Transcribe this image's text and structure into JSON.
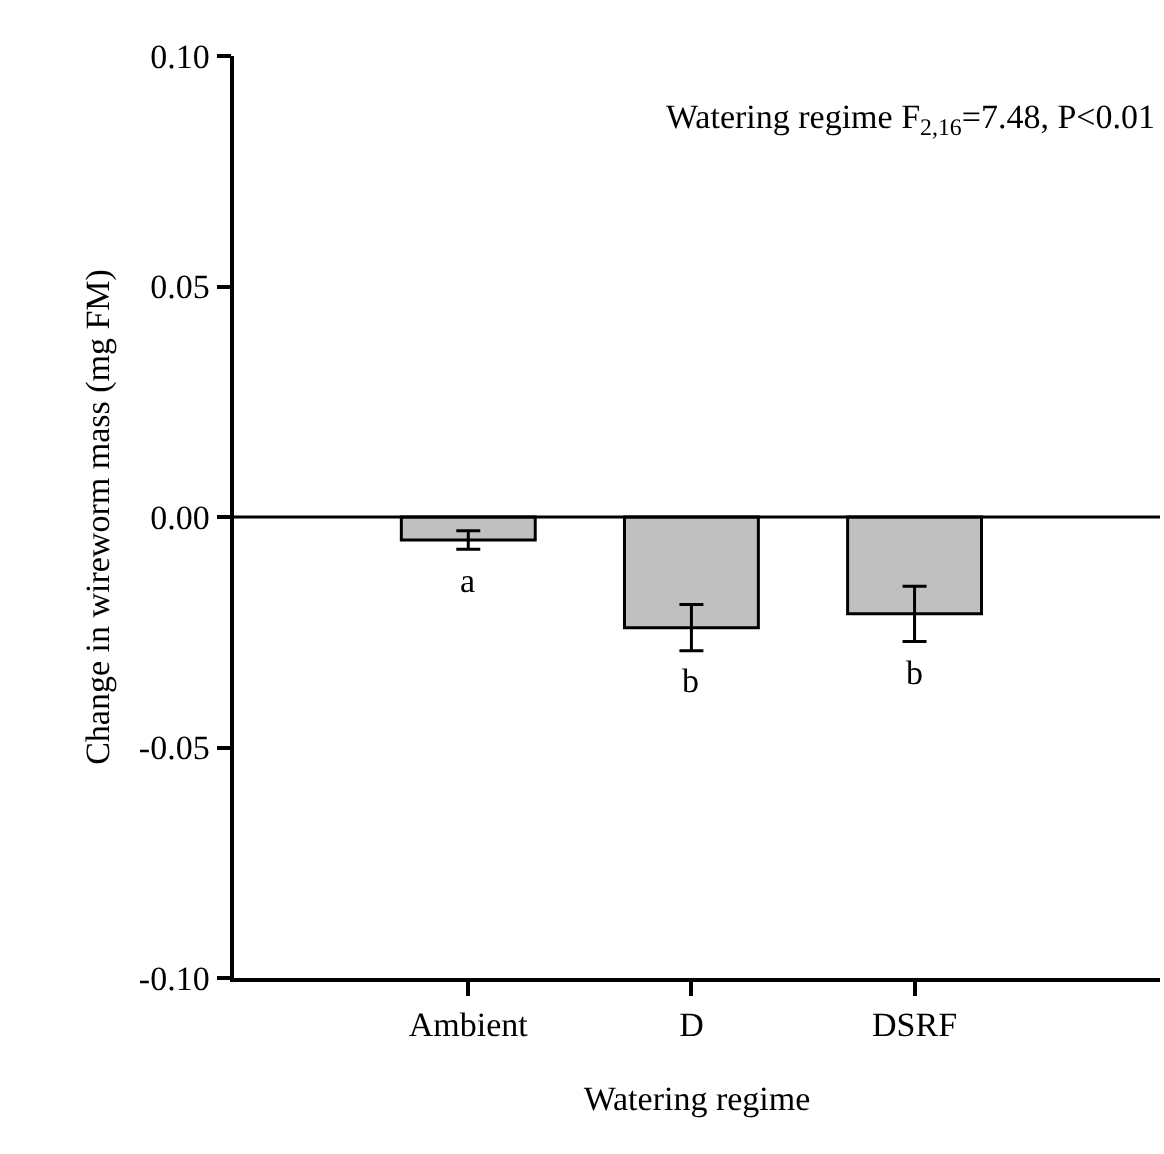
{
  "chart_data": {
    "type": "bar",
    "xlabel": "Watering regime",
    "ylabel": "Change in wireworm mass (mg FM)",
    "categories": [
      "Ambient",
      "D",
      "DSRF"
    ],
    "values": [
      -0.005,
      -0.024,
      -0.021
    ],
    "color": "#c0c0c0",
    "errors": [
      0.002,
      0.005,
      0.006
    ],
    "ylim": [
      -0.1,
      0.1
    ],
    "yticks": [
      {
        "value": -0.1,
        "label": "-0.10"
      },
      {
        "value": -0.05,
        "label": "-0.05"
      },
      {
        "value": 0,
        "label": "0.00"
      },
      {
        "value": 0.05,
        "label": "0.05"
      },
      {
        "value": 0.1,
        "label": "0.10"
      }
    ],
    "ref_lines": [
      {
        "axis": "y",
        "value": 0,
        "color": "#000000"
      }
    ],
    "annotations": [
      "Watering regime F$_{2,16}$=7.48, P<0.01",
      "a",
      "b",
      "b"
    ],
    "grid": false
  }
}
